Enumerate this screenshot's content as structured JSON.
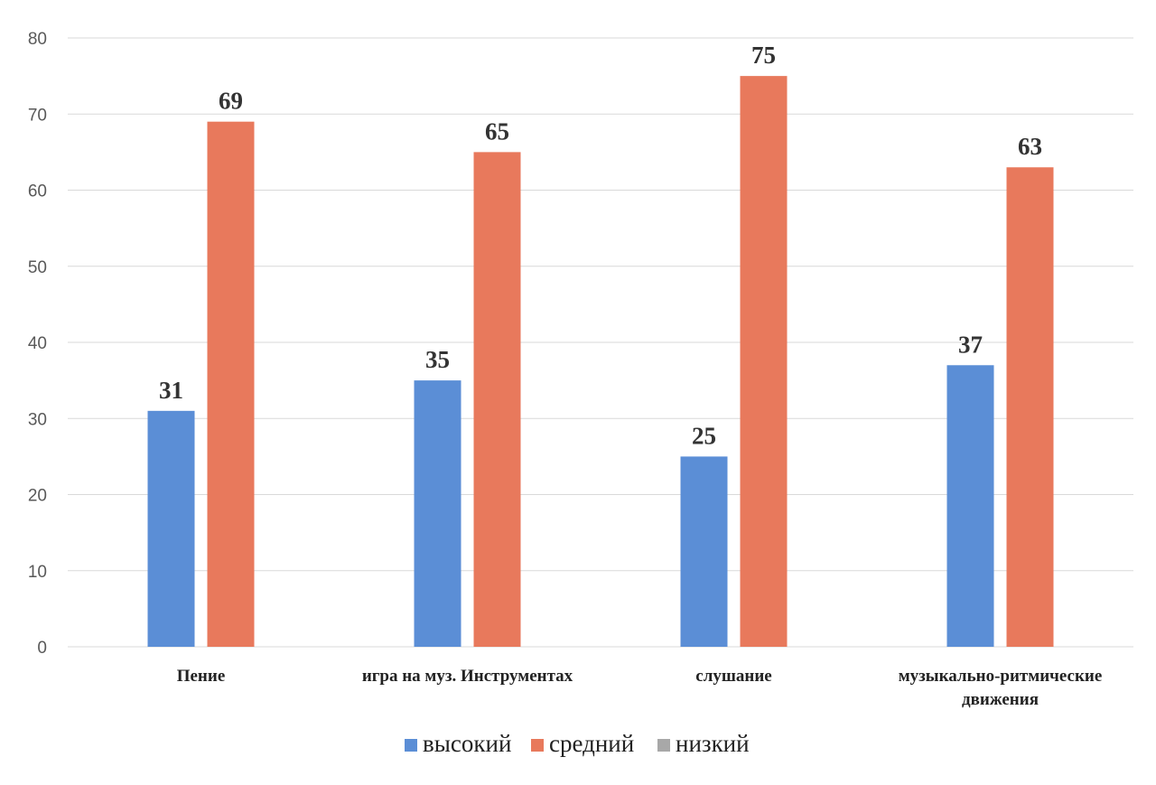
{
  "chart_data": {
    "type": "bar",
    "categories": [
      [
        "Пение"
      ],
      [
        "игра на муз. Инструментах"
      ],
      [
        "слушание"
      ],
      [
        "музыкально-ритмические",
        "движения"
      ]
    ],
    "series": [
      {
        "name": "высокий",
        "values": [
          31,
          35,
          25,
          37
        ],
        "color": "#5B8ED6"
      },
      {
        "name": "средний",
        "values": [
          69,
          65,
          75,
          63
        ],
        "color": "#E8795C"
      },
      {
        "name": "низкий",
        "values": [
          0,
          0,
          0,
          0
        ],
        "color": "#A8A8A8"
      }
    ],
    "yticks": [
      0,
      10,
      20,
      30,
      40,
      50,
      60,
      70,
      80
    ],
    "ylim": [
      0,
      80
    ],
    "grid": true,
    "legend_position": "bottom",
    "data_labels": true
  }
}
